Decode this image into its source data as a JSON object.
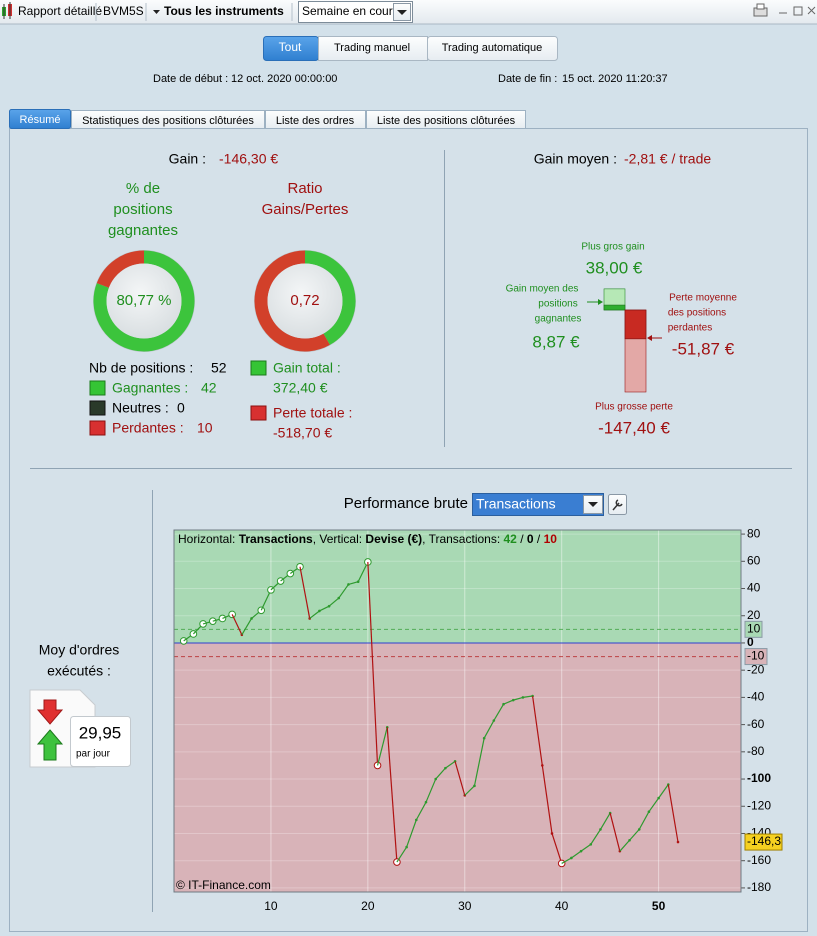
{
  "toolbar": {
    "report": "Rapport détaillé",
    "account": "BVM5S",
    "instruments": "Tous les instruments",
    "period": "Semaine en cours"
  },
  "filters": [
    "Tout",
    "Trading manuel",
    "Trading automatique"
  ],
  "dates": {
    "start_label": "Date de début :",
    "start": "12 oct. 2020 00:00:00",
    "end_label": "Date de fin :",
    "end": "15 oct. 2020 11:20:37"
  },
  "tabs": [
    "Résumé",
    "Statistiques des positions clôturées",
    "Liste des ordres",
    "Liste des positions clôturées"
  ],
  "summary": {
    "gain_label": "Gain :",
    "gain": "-146,30 €",
    "win_rate": {
      "title": [
        "% de",
        "positions",
        "gagnantes"
      ],
      "value": 80.77,
      "label": "80,77 %"
    },
    "ratio": {
      "title": [
        "Ratio",
        "Gains/Pertes"
      ],
      "label": "0,72"
    },
    "positions": {
      "label": "Nb de positions :",
      "value": "52"
    },
    "wins": {
      "label": "Gagnantes :",
      "value": "42"
    },
    "neutral": {
      "label": "Neutres :",
      "value": "0"
    },
    "losses": {
      "label": "Perdantes :",
      "value": "10"
    },
    "gain_total": {
      "label": "Gain total :",
      "value": 372.4,
      "value_label": "372,40 €"
    },
    "loss_total": {
      "label": "Perte totale :",
      "value": -518.7,
      "value_label": "-518,70 €"
    }
  },
  "averages": {
    "label": "Gain moyen :",
    "value": "-2,81 € / trade",
    "max_gain": {
      "label": "Plus gros gain",
      "value": 38,
      "value_label": "38,00 €"
    },
    "avg_gain": {
      "label": [
        "Gain moyen des",
        "positions",
        "gagnantes"
      ],
      "value": 8.87,
      "value_label": "8,87 €"
    },
    "avg_loss": {
      "label": [
        "Perte moyenne",
        "des positions",
        "perdantes"
      ],
      "value": -51.87,
      "value_label": "-51,87 €"
    },
    "max_loss": {
      "label": "Plus grosse perte",
      "value": -147.4,
      "value_label": "-147,40 €"
    }
  },
  "orders": {
    "label": [
      "Moy d'ordres",
      "exécutés :"
    ],
    "value": "29,95",
    "unit": "par jour"
  },
  "chart_data": {
    "type": "line",
    "title": "Performance brute",
    "mode": "Transactions",
    "info": [
      {
        "text": "Horizontal: "
      },
      {
        "text": "Transactions",
        "bold": true
      },
      {
        "text": ", Vertical: "
      },
      {
        "text": "Devise (€)",
        "bold": true
      },
      {
        "text": ", Transactions: "
      },
      {
        "text": "42",
        "bold": true,
        "color": "#1f8f1f"
      },
      {
        "text": " / "
      },
      {
        "text": "0",
        "bold": true
      },
      {
        "text": " / "
      },
      {
        "text": "10",
        "bold": true,
        "color": "#b00000"
      }
    ],
    "x": [
      1,
      2,
      3,
      4,
      5,
      6,
      7,
      8,
      9,
      10,
      11,
      12,
      13,
      14,
      15,
      16,
      17,
      18,
      19,
      20,
      21,
      22,
      23,
      24,
      25,
      26,
      27,
      28,
      29,
      30,
      31,
      32,
      33,
      34,
      35,
      36,
      37,
      38,
      39,
      40,
      41,
      42,
      43,
      44,
      45,
      46,
      47,
      48,
      49,
      50,
      51,
      52
    ],
    "values": [
      1.5,
      6.6,
      14,
      16,
      18,
      21,
      6,
      18,
      24,
      39,
      45.5,
      51,
      56,
      18,
      23.5,
      27,
      33,
      43,
      45,
      59.5,
      -90,
      -62,
      -161,
      -150,
      -130,
      -117,
      -100,
      -92,
      -87,
      -112,
      -105,
      -70,
      -57,
      -45,
      -42,
      -40,
      -39,
      -90,
      -140,
      -162,
      -158,
      -153,
      -148,
      -137,
      -125,
      -153,
      -145,
      -137,
      -124,
      -114,
      -104,
      -146.3
    ],
    "up_color": "#2e9a2e",
    "down_color": "#b01212",
    "xlim": [
      0,
      58.5
    ],
    "xticks": [
      10,
      20,
      30,
      40,
      50
    ],
    "bold_xticks": [
      50
    ],
    "ylim": [
      -183,
      83
    ],
    "yticks": [
      80,
      60,
      40,
      20,
      0,
      -20,
      -40,
      -60,
      -80,
      -100,
      -120,
      -140,
      -160,
      -180
    ],
    "bold_yticks": [
      0,
      -100
    ],
    "thresholds": [
      10,
      -10
    ],
    "last": {
      "value": -146.3,
      "label": "-146,3"
    },
    "copyright": "© IT-Finance.com"
  }
}
